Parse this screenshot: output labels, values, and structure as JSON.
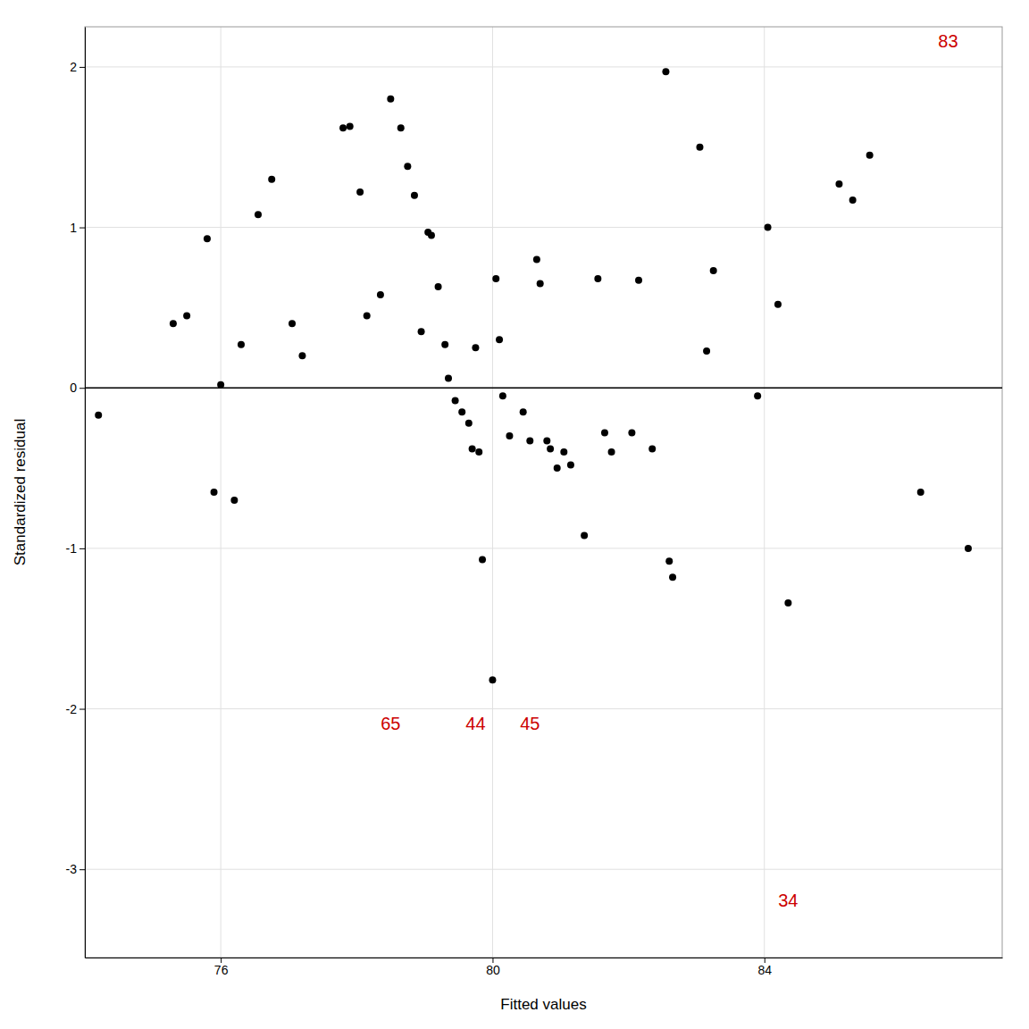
{
  "chart_data": {
    "type": "scatter",
    "xlabel": "Fitted values",
    "ylabel": "Standardized residual",
    "x": [
      74.2,
      75.3,
      75.5,
      75.8,
      75.9,
      76.0,
      76.2,
      76.3,
      76.55,
      76.75,
      77.05,
      77.2,
      77.8,
      77.9,
      78.05,
      78.15,
      78.35,
      78.5,
      78.65,
      78.75,
      78.85,
      78.95,
      79.05,
      79.1,
      79.2,
      79.3,
      79.35,
      79.45,
      79.55,
      79.65,
      79.7,
      79.75,
      79.8,
      79.85,
      80.0,
      80.05,
      80.1,
      80.15,
      80.25,
      80.45,
      80.55,
      80.65,
      80.7,
      80.8,
      80.85,
      80.95,
      81.05,
      81.15,
      81.35,
      81.55,
      81.65,
      81.75,
      82.05,
      82.15,
      82.35,
      82.55,
      82.6,
      82.65,
      83.05,
      83.15,
      83.25,
      83.9,
      84.05,
      84.2,
      84.35,
      85.1,
      85.3,
      85.55,
      86.3,
      87.0
    ],
    "values": [
      -0.17,
      0.4,
      0.45,
      0.93,
      -0.65,
      0.02,
      -0.7,
      0.27,
      1.08,
      1.3,
      0.4,
      0.2,
      1.62,
      1.63,
      1.22,
      0.45,
      0.58,
      1.8,
      1.62,
      1.38,
      1.2,
      0.35,
      0.97,
      0.95,
      0.63,
      0.27,
      0.06,
      -0.08,
      -0.15,
      -0.22,
      -0.38,
      0.25,
      -0.4,
      -1.07,
      -1.82,
      0.68,
      0.3,
      -0.05,
      -0.3,
      -0.15,
      -0.33,
      0.8,
      0.65,
      -0.33,
      -0.38,
      -0.5,
      -0.4,
      -0.48,
      -0.92,
      0.68,
      -0.28,
      -0.4,
      -0.28,
      0.67,
      -0.38,
      1.97,
      -1.08,
      -1.18,
      1.5,
      0.23,
      0.73,
      -0.05,
      1.0,
      0.52,
      -1.34,
      1.27,
      1.17,
      1.45,
      -0.65,
      -1.0
    ],
    "color": "#000000",
    "hline": 0,
    "annotations": [
      {
        "text": "83",
        "x": 86.85,
        "y": 2.12,
        "color": "#cc0000"
      },
      {
        "text": "65",
        "x": 78.5,
        "y": -2.05,
        "color": "#cc0000"
      },
      {
        "text": "44",
        "x": 79.75,
        "y": -2.05,
        "color": "#cc0000"
      },
      {
        "text": "45",
        "x": 80.55,
        "y": -2.05,
        "color": "#cc0000"
      },
      {
        "text": "34",
        "x": 84.35,
        "y": -3.15,
        "color": "#cc0000"
      }
    ],
    "xlim": [
      74.0,
      87.5
    ],
    "ylim": [
      -3.55,
      2.25
    ],
    "xticks": [
      76,
      80,
      84
    ],
    "yticks": [
      -3,
      -2,
      -1,
      0,
      1,
      2
    ],
    "grid": true
  }
}
